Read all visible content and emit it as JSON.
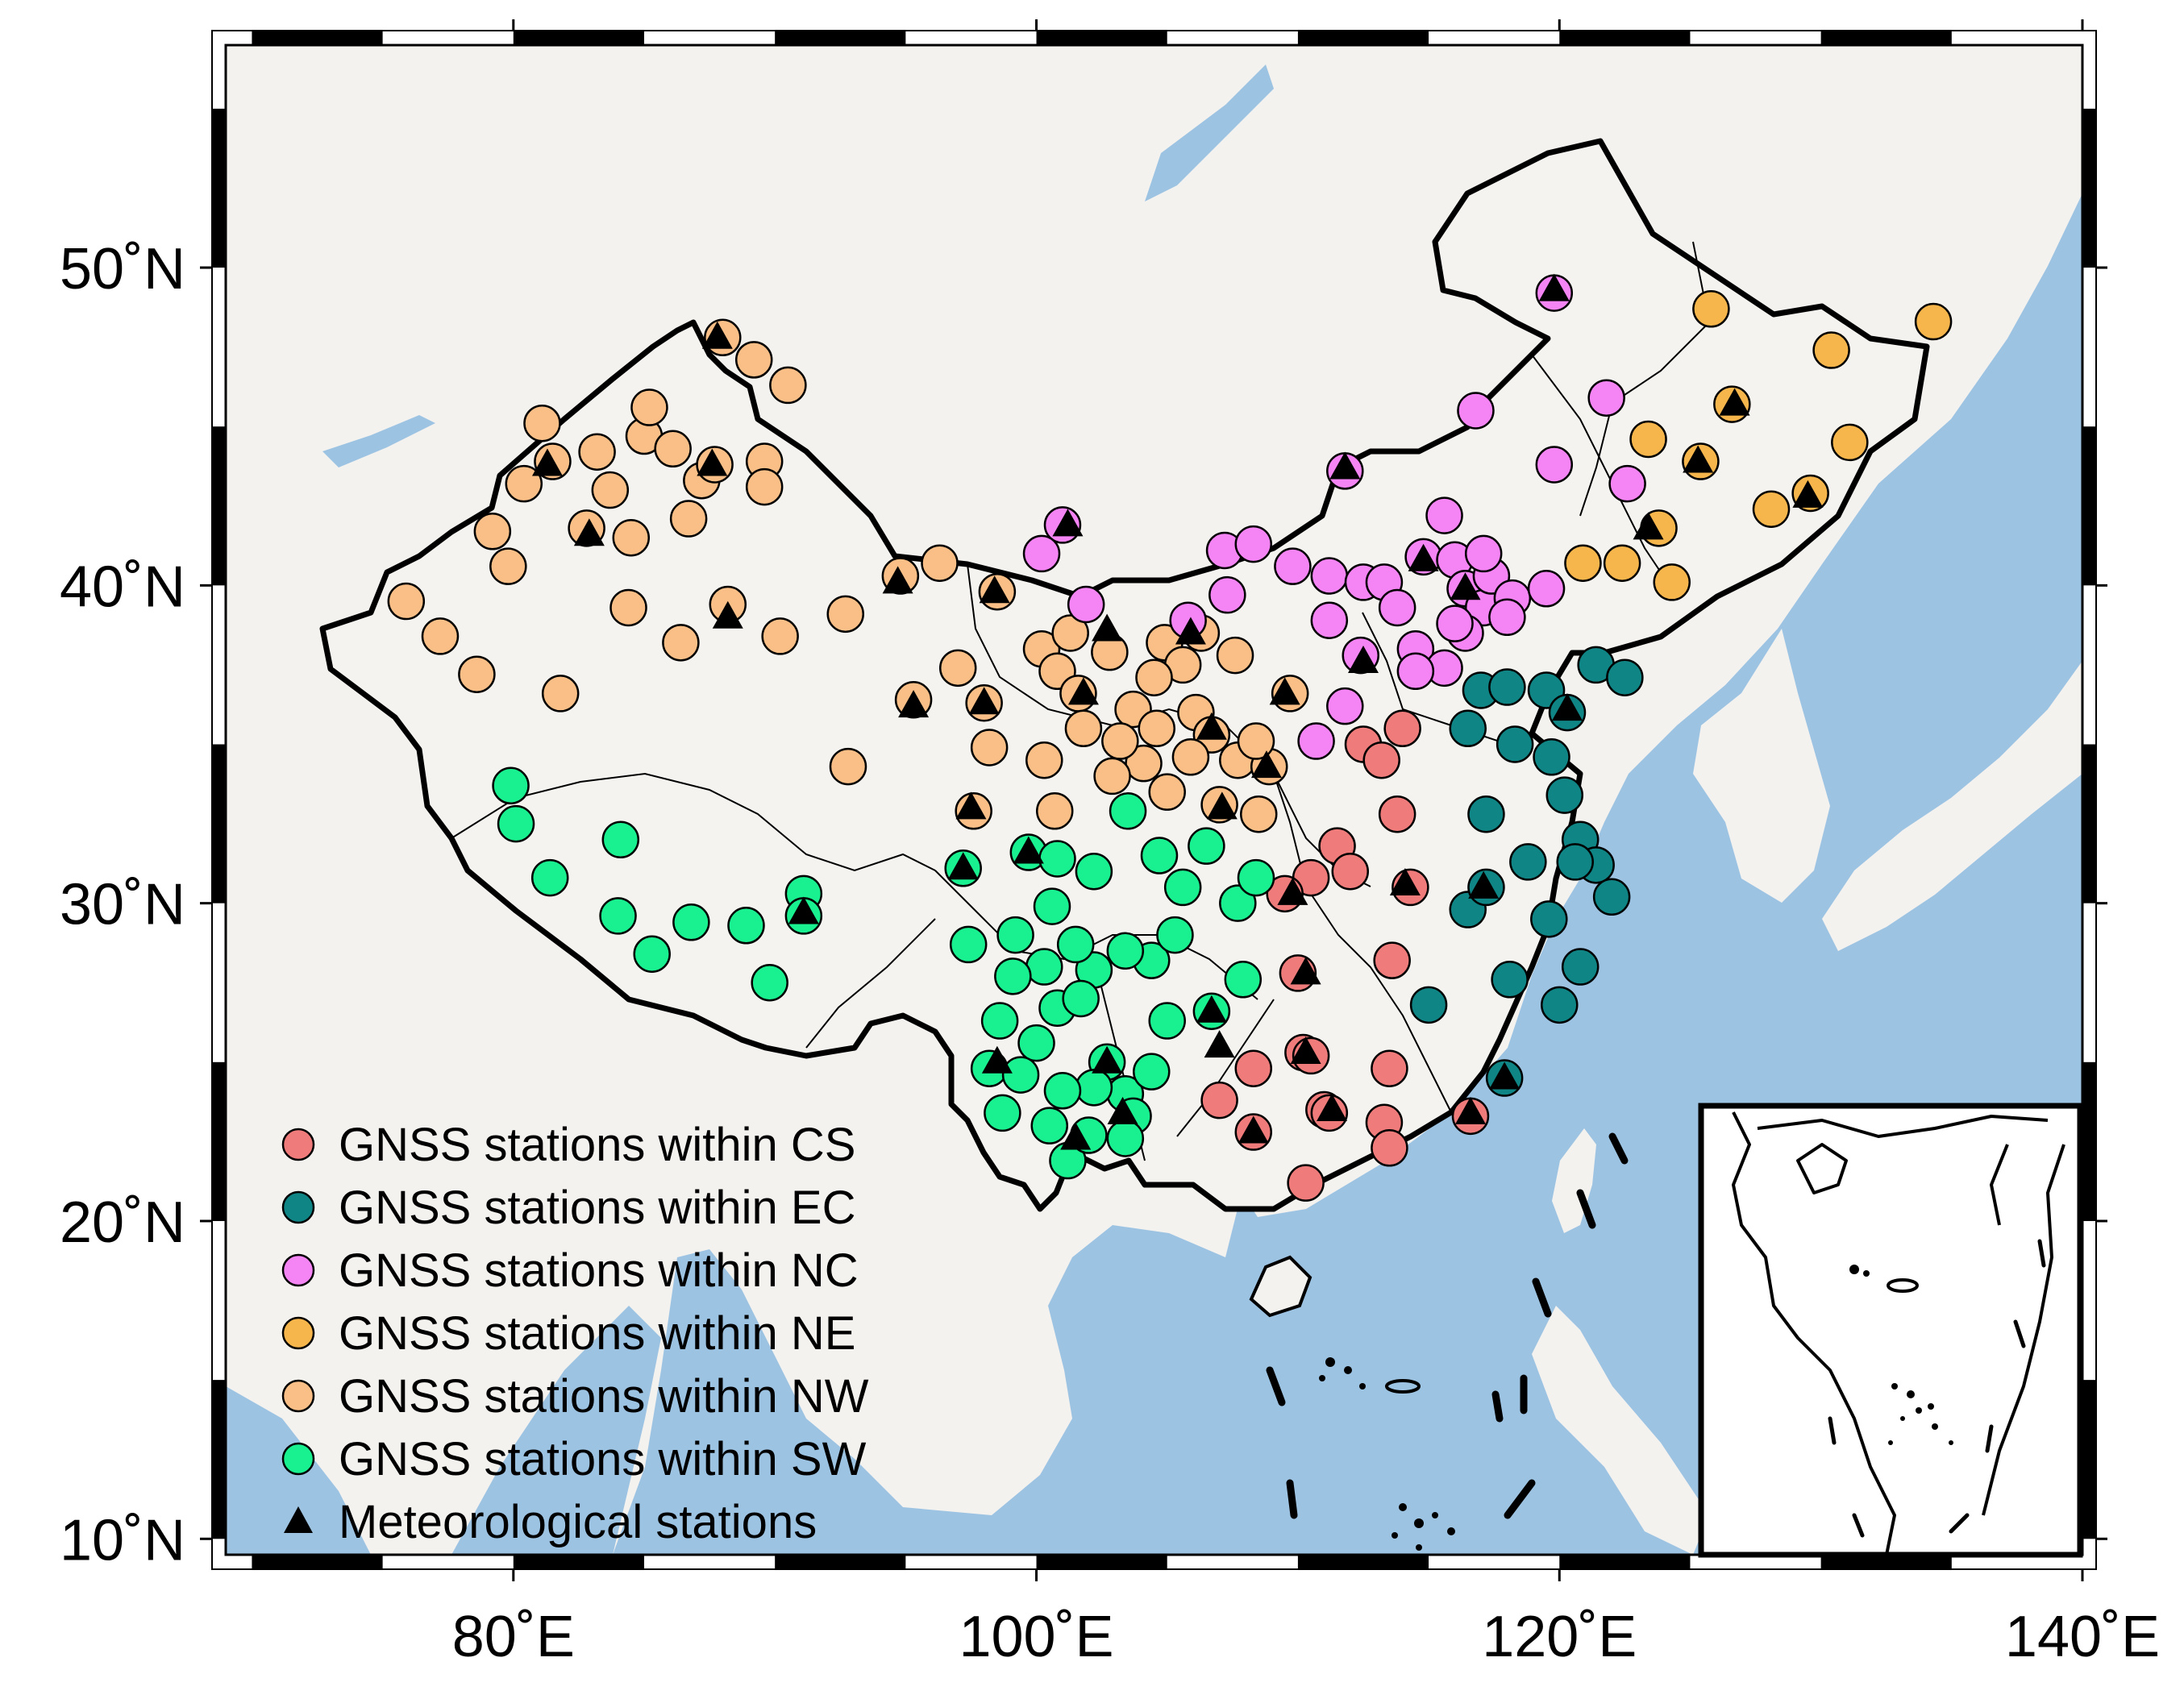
{
  "map": {
    "projection": "equirectangular",
    "lon_range": [
      69,
      140
    ],
    "lat_range": [
      9.5,
      57
    ],
    "x_ticks": [
      {
        "lon": 80,
        "label": "80˚E"
      },
      {
        "lon": 100,
        "label": "100˚E"
      },
      {
        "lon": 120,
        "label": "120˚E"
      },
      {
        "lon": 140,
        "label": "140˚E"
      }
    ],
    "y_ticks": [
      {
        "lat": 50,
        "label": "50˚N"
      },
      {
        "lat": 40,
        "label": "40˚N"
      },
      {
        "lat": 30,
        "label": "30˚N"
      },
      {
        "lat": 20,
        "label": "20˚N"
      },
      {
        "lat": 10,
        "label": "10˚N"
      }
    ],
    "colors": {
      "sea": "#9dc3e3",
      "land": "#f3f2ef",
      "china": "#f4f3f0",
      "CS": "#f07b7b",
      "EC": "#108585",
      "NC": "#f584f5",
      "NE": "#f7b64c",
      "NW": "#f9bf86",
      "SW": "#19f08f"
    },
    "inset": "south-china-sea-islands"
  },
  "legend": [
    {
      "key": "CS",
      "label": "GNSS stations within CS",
      "symbol": "circle"
    },
    {
      "key": "EC",
      "label": "GNSS stations within EC",
      "symbol": "circle"
    },
    {
      "key": "NC",
      "label": "GNSS stations within NC",
      "symbol": "circle"
    },
    {
      "key": "NE",
      "label": "GNSS stations within NE",
      "symbol": "circle"
    },
    {
      "key": "NW",
      "label": "GNSS stations within NW",
      "symbol": "circle"
    },
    {
      "key": "SW",
      "label": "GNSS stations within SW",
      "symbol": "circle"
    },
    {
      "key": "MET",
      "label": "Meteorological stations",
      "symbol": "triangle"
    }
  ],
  "stations": {
    "CS": [
      [
        112.5,
        35.0
      ],
      [
        113.2,
        34.5
      ],
      [
        114.0,
        35.5
      ],
      [
        113.8,
        32.8
      ],
      [
        111.5,
        31.8
      ],
      [
        112.0,
        31.0
      ],
      [
        110.5,
        30.8
      ],
      [
        109.5,
        30.3
      ],
      [
        114.3,
        30.5
      ],
      [
        113.6,
        28.2
      ],
      [
        110.0,
        27.8
      ],
      [
        113.5,
        24.8
      ],
      [
        113.3,
        23.1
      ],
      [
        113.5,
        22.3
      ],
      [
        111.0,
        23.5
      ],
      [
        110.2,
        25.3
      ],
      [
        108.3,
        24.8
      ],
      [
        107.0,
        23.8
      ],
      [
        108.3,
        22.8
      ],
      [
        110.3,
        21.2
      ],
      [
        116.6,
        23.3
      ],
      [
        110.5,
        25.2
      ],
      [
        111.2,
        23.4
      ]
    ],
    "EC": [
      [
        117.0,
        36.7
      ],
      [
        118.0,
        36.8
      ],
      [
        119.5,
        36.7
      ],
      [
        120.3,
        36.0
      ],
      [
        121.4,
        37.5
      ],
      [
        122.5,
        37.1
      ],
      [
        116.5,
        35.5
      ],
      [
        118.3,
        35.0
      ],
      [
        119.7,
        34.6
      ],
      [
        117.2,
        32.8
      ],
      [
        120.2,
        33.4
      ],
      [
        120.8,
        32.0
      ],
      [
        121.4,
        31.2
      ],
      [
        120.6,
        31.3
      ],
      [
        122.0,
        30.2
      ],
      [
        118.8,
        31.3
      ],
      [
        116.5,
        29.8
      ],
      [
        117.2,
        30.5
      ],
      [
        119.6,
        29.5
      ],
      [
        120.8,
        28.0
      ],
      [
        120.0,
        26.8
      ],
      [
        118.1,
        27.6
      ],
      [
        115.0,
        26.8
      ],
      [
        117.9,
        24.5
      ]
    ],
    "NC": [
      [
        119.8,
        49.2
      ],
      [
        116.8,
        45.5
      ],
      [
        121.8,
        45.9
      ],
      [
        119.8,
        43.8
      ],
      [
        122.6,
        43.2
      ],
      [
        111.8,
        43.6
      ],
      [
        101.0,
        41.9
      ],
      [
        100.2,
        41.0
      ],
      [
        101.9,
        39.4
      ],
      [
        105.8,
        38.9
      ],
      [
        107.3,
        39.7
      ],
      [
        107.2,
        41.1
      ],
      [
        108.3,
        41.3
      ],
      [
        109.8,
        40.6
      ],
      [
        111.2,
        40.3
      ],
      [
        112.5,
        40.1
      ],
      [
        113.3,
        40.1
      ],
      [
        114.8,
        40.9
      ],
      [
        116.0,
        40.8
      ],
      [
        116.4,
        39.9
      ],
      [
        117.1,
        39.3
      ],
      [
        117.4,
        40.3
      ],
      [
        118.2,
        39.6
      ],
      [
        119.5,
        39.9
      ],
      [
        118.0,
        39.0
      ],
      [
        116.4,
        38.5
      ],
      [
        114.5,
        38.0
      ],
      [
        115.6,
        37.4
      ],
      [
        113.8,
        39.3
      ],
      [
        111.2,
        38.9
      ],
      [
        112.4,
        37.8
      ],
      [
        111.8,
        36.2
      ],
      [
        110.7,
        35.1
      ],
      [
        114.5,
        37.3
      ],
      [
        115.6,
        42.2
      ],
      [
        117.1,
        41.0
      ],
      [
        116.0,
        38.8
      ]
    ],
    "NE": [
      [
        125.8,
        48.7
      ],
      [
        134.3,
        48.3
      ],
      [
        130.4,
        47.4
      ],
      [
        126.6,
        45.7
      ],
      [
        125.4,
        43.9
      ],
      [
        131.1,
        44.5
      ],
      [
        129.6,
        42.9
      ],
      [
        128.1,
        42.4
      ],
      [
        123.4,
        44.6
      ],
      [
        123.8,
        41.8
      ],
      [
        124.3,
        40.1
      ],
      [
        122.4,
        40.7
      ],
      [
        120.9,
        40.7
      ]
    ],
    "NW": [
      [
        75.9,
        39.5
      ],
      [
        77.2,
        38.4
      ],
      [
        78.6,
        37.2
      ],
      [
        79.8,
        40.6
      ],
      [
        79.2,
        41.7
      ],
      [
        80.4,
        43.2
      ],
      [
        81.1,
        45.1
      ],
      [
        81.5,
        43.9
      ],
      [
        82.8,
        41.8
      ],
      [
        83.2,
        44.2
      ],
      [
        83.7,
        43.0
      ],
      [
        84.5,
        41.5
      ],
      [
        85.0,
        44.7
      ],
      [
        85.2,
        45.6
      ],
      [
        86.1,
        44.3
      ],
      [
        86.7,
        42.1
      ],
      [
        87.2,
        43.3
      ],
      [
        87.7,
        43.8
      ],
      [
        88.0,
        47.8
      ],
      [
        89.2,
        47.1
      ],
      [
        90.5,
        46.3
      ],
      [
        89.6,
        43.9
      ],
      [
        89.6,
        43.1
      ],
      [
        88.2,
        39.4
      ],
      [
        84.4,
        39.3
      ],
      [
        86.4,
        38.2
      ],
      [
        81.8,
        36.6
      ],
      [
        90.2,
        38.4
      ],
      [
        92.7,
        39.1
      ],
      [
        92.8,
        34.3
      ],
      [
        95.3,
        36.4
      ],
      [
        94.8,
        40.3
      ],
      [
        96.3,
        40.7
      ],
      [
        97.0,
        37.4
      ],
      [
        98.5,
        39.8
      ],
      [
        98.0,
        36.3
      ],
      [
        98.2,
        34.9
      ],
      [
        97.6,
        32.9
      ],
      [
        100.2,
        38.0
      ],
      [
        101.3,
        38.5
      ],
      [
        100.8,
        37.3
      ],
      [
        101.6,
        36.6
      ],
      [
        102.8,
        37.9
      ],
      [
        103.7,
        36.1
      ],
      [
        104.9,
        38.2
      ],
      [
        105.6,
        37.5
      ],
      [
        106.3,
        38.5
      ],
      [
        107.6,
        37.8
      ],
      [
        106.1,
        36.0
      ],
      [
        106.7,
        35.3
      ],
      [
        107.7,
        34.5
      ],
      [
        108.9,
        34.3
      ],
      [
        109.7,
        36.6
      ],
      [
        108.4,
        35.1
      ],
      [
        108.5,
        32.8
      ],
      [
        107.0,
        33.1
      ],
      [
        105.9,
        34.6
      ],
      [
        104.6,
        35.5
      ],
      [
        104.1,
        34.4
      ],
      [
        102.9,
        34.0
      ],
      [
        101.8,
        35.5
      ],
      [
        103.2,
        35.1
      ],
      [
        105.0,
        33.5
      ],
      [
        100.3,
        34.5
      ],
      [
        100.7,
        32.9
      ],
      [
        104.5,
        37.1
      ]
    ],
    "SW": [
      [
        79.9,
        33.7
      ],
      [
        80.1,
        32.5
      ],
      [
        81.4,
        30.8
      ],
      [
        84.1,
        32.0
      ],
      [
        84.0,
        29.6
      ],
      [
        85.3,
        28.4
      ],
      [
        86.8,
        29.4
      ],
      [
        88.9,
        29.3
      ],
      [
        89.8,
        27.5
      ],
      [
        91.1,
        30.3
      ],
      [
        91.1,
        29.6
      ],
      [
        97.2,
        31.1
      ],
      [
        97.4,
        28.7
      ],
      [
        99.7,
        31.6
      ],
      [
        100.8,
        31.4
      ],
      [
        102.2,
        31.0
      ],
      [
        103.5,
        32.9
      ],
      [
        104.7,
        31.5
      ],
      [
        105.6,
        30.5
      ],
      [
        106.5,
        31.8
      ],
      [
        107.7,
        30.0
      ],
      [
        108.4,
        30.8
      ],
      [
        107.9,
        27.6
      ],
      [
        106.7,
        26.6
      ],
      [
        105.0,
        26.3
      ],
      [
        104.4,
        28.2
      ],
      [
        105.3,
        29.0
      ],
      [
        103.4,
        28.5
      ],
      [
        102.2,
        27.9
      ],
      [
        101.5,
        28.7
      ],
      [
        100.3,
        28.0
      ],
      [
        100.6,
        29.9
      ],
      [
        99.2,
        29.0
      ],
      [
        99.1,
        27.7
      ],
      [
        98.6,
        26.3
      ],
      [
        98.2,
        24.8
      ],
      [
        100.0,
        25.6
      ],
      [
        100.8,
        26.7
      ],
      [
        101.7,
        27.0
      ],
      [
        102.7,
        25.0
      ],
      [
        103.4,
        24.0
      ],
      [
        102.2,
        24.2
      ],
      [
        101.0,
        24.1
      ],
      [
        100.5,
        23.0
      ],
      [
        99.4,
        24.6
      ],
      [
        98.7,
        23.4
      ],
      [
        101.2,
        21.9
      ],
      [
        102.0,
        22.7
      ],
      [
        103.7,
        23.3
      ],
      [
        103.4,
        22.6
      ],
      [
        104.4,
        24.7
      ]
    ],
    "MET": [
      [
        87.8,
        47.8
      ],
      [
        81.3,
        43.8
      ],
      [
        82.9,
        41.6
      ],
      [
        87.6,
        43.8
      ],
      [
        88.2,
        39.0
      ],
      [
        94.7,
        40.1
      ],
      [
        95.3,
        36.2
      ],
      [
        98.4,
        39.8
      ],
      [
        98.0,
        36.3
      ],
      [
        97.5,
        33.0
      ],
      [
        97.2,
        31.1
      ],
      [
        99.7,
        31.6
      ],
      [
        101.2,
        41.9
      ],
      [
        102.7,
        38.6
      ],
      [
        101.8,
        36.6
      ],
      [
        105.9,
        38.5
      ],
      [
        106.7,
        35.5
      ],
      [
        107.1,
        33.0
      ],
      [
        108.8,
        34.3
      ],
      [
        109.5,
        36.6
      ],
      [
        112.5,
        37.6
      ],
      [
        114.8,
        40.8
      ],
      [
        116.4,
        39.9
      ],
      [
        119.8,
        49.3
      ],
      [
        111.8,
        43.7
      ],
      [
        123.4,
        41.8
      ],
      [
        125.3,
        43.9
      ],
      [
        126.7,
        45.7
      ],
      [
        129.5,
        42.8
      ],
      [
        120.3,
        36.1
      ],
      [
        117.1,
        30.5
      ],
      [
        114.1,
        30.6
      ],
      [
        109.8,
        30.3
      ],
      [
        110.3,
        27.8
      ],
      [
        110.3,
        25.3
      ],
      [
        108.3,
        22.8
      ],
      [
        107.0,
        25.5
      ],
      [
        116.6,
        23.4
      ],
      [
        117.9,
        24.5
      ],
      [
        111.3,
        23.5
      ],
      [
        91.1,
        29.7
      ],
      [
        98.5,
        25.0
      ],
      [
        101.5,
        22.6
      ],
      [
        103.3,
        23.4
      ],
      [
        102.7,
        25.0
      ],
      [
        106.7,
        26.6
      ]
    ]
  }
}
